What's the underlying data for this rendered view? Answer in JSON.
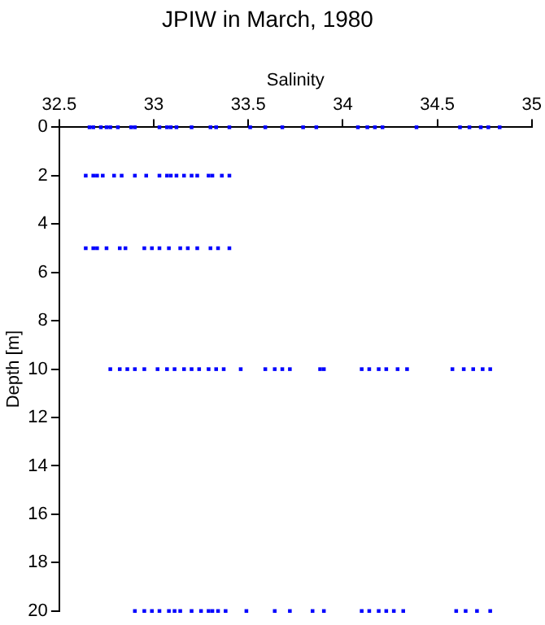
{
  "chart_data": {
    "type": "scatter",
    "title": "JPIW in March, 1980",
    "xlabel": "Salinity",
    "ylabel": "Depth [m]",
    "xlim": [
      32.5,
      35
    ],
    "xticks": [
      32.5,
      33,
      33.5,
      34,
      34.5,
      35
    ],
    "ylim": [
      20,
      0
    ],
    "yticks": [
      0,
      2,
      4,
      6,
      8,
      10,
      12,
      14,
      16,
      18,
      20
    ],
    "grid": false,
    "legend": false,
    "marker": "square",
    "series": [
      {
        "color": "#0000ff",
        "x": [
          32.66,
          32.68,
          32.72,
          32.75,
          32.77,
          32.81,
          32.88,
          32.9,
          33.03,
          33.07,
          33.09,
          33.12,
          33.2,
          33.3,
          33.33,
          33.4,
          33.51,
          33.59,
          33.68,
          33.79,
          33.86,
          34.08,
          34.13,
          34.17,
          34.21,
          34.39,
          34.62,
          34.67,
          34.73,
          34.77,
          34.83,
          32.64,
          32.68,
          32.7,
          32.73,
          32.79,
          32.83,
          32.9,
          32.96,
          33.03,
          33.07,
          33.09,
          33.12,
          33.16,
          33.2,
          33.23,
          33.29,
          33.31,
          33.36,
          33.4,
          32.64,
          32.68,
          32.7,
          32.75,
          32.82,
          32.85,
          32.95,
          32.99,
          33.03,
          33.08,
          33.14,
          33.18,
          33.23,
          33.3,
          33.34,
          33.4,
          32.77,
          32.82,
          32.86,
          32.9,
          32.95,
          33.02,
          33.07,
          33.11,
          33.16,
          33.2,
          33.24,
          33.29,
          33.33,
          33.37,
          33.46,
          33.59,
          33.64,
          33.68,
          33.72,
          33.88,
          33.9,
          34.1,
          34.14,
          34.19,
          34.23,
          34.29,
          34.34,
          34.58,
          34.64,
          34.69,
          34.74,
          34.78,
          32.9,
          32.95,
          32.99,
          33.03,
          33.08,
          33.11,
          33.14,
          33.2,
          33.25,
          33.29,
          33.31,
          33.34,
          33.38,
          33.49,
          33.64,
          33.72,
          33.84,
          33.9,
          34.1,
          34.14,
          34.19,
          34.23,
          34.27,
          34.32,
          34.6,
          34.65,
          34.71,
          34.78
        ],
        "values": [
          0,
          0,
          0,
          0,
          0,
          0,
          0,
          0,
          0,
          0,
          0,
          0,
          0,
          0,
          0,
          0,
          0,
          0,
          0,
          0,
          0,
          0,
          0,
          0,
          0,
          0,
          0,
          0,
          0,
          0,
          0,
          2,
          2,
          2,
          2,
          2,
          2,
          2,
          2,
          2,
          2,
          2,
          2,
          2,
          2,
          2,
          2,
          2,
          2,
          2,
          5,
          5,
          5,
          5,
          5,
          5,
          5,
          5,
          5,
          5,
          5,
          5,
          5,
          5,
          5,
          5,
          10,
          10,
          10,
          10,
          10,
          10,
          10,
          10,
          10,
          10,
          10,
          10,
          10,
          10,
          10,
          10,
          10,
          10,
          10,
          10,
          10,
          10,
          10,
          10,
          10,
          10,
          10,
          10,
          10,
          10,
          10,
          10,
          20,
          20,
          20,
          20,
          20,
          20,
          20,
          20,
          20,
          20,
          20,
          20,
          20,
          20,
          20,
          20,
          20,
          20,
          20,
          20,
          20,
          20,
          20,
          20,
          20,
          20,
          20,
          20
        ]
      }
    ]
  }
}
